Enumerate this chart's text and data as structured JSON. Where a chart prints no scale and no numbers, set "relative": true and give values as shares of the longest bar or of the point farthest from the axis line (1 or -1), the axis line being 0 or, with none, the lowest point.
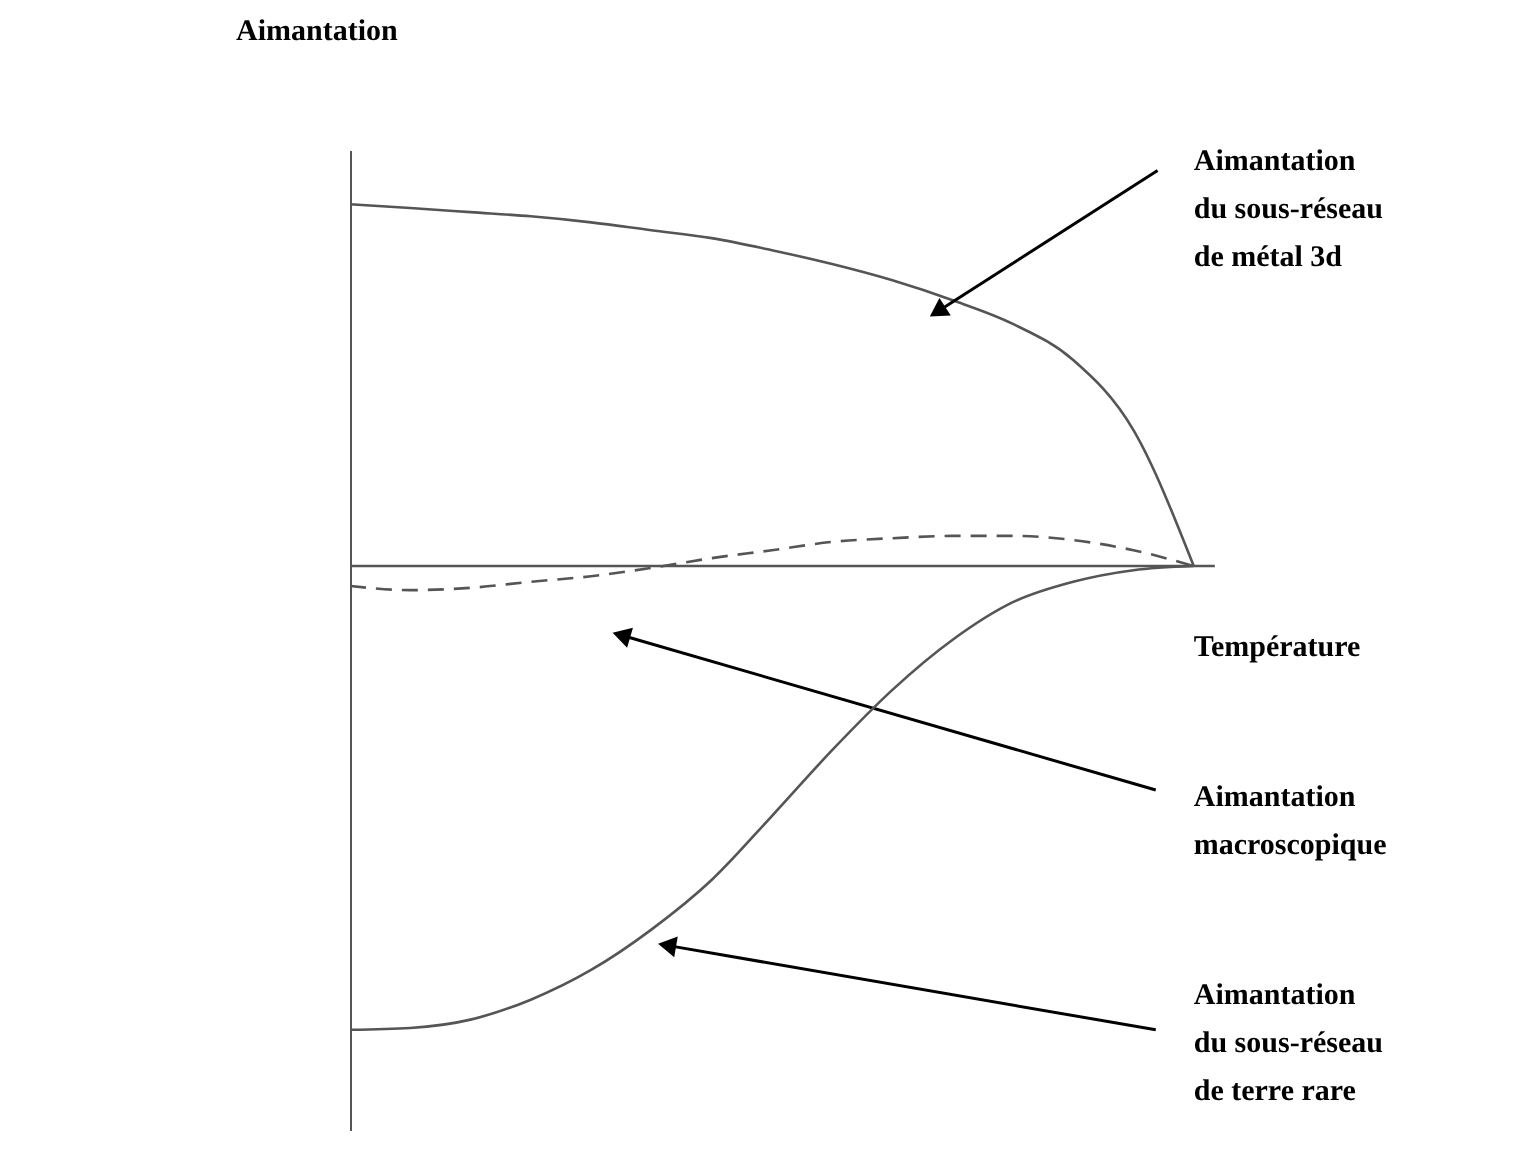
{
  "chart_data": {
    "type": "line",
    "relative": true,
    "xlabel": "Température",
    "annotations": [
      "Aimantation"
    ],
    "marker": "none",
    "categories": [
      null,
      null,
      null,
      null,
      null,
      null,
      null,
      null,
      null,
      null,
      null,
      null,
      null,
      null,
      null
    ],
    "series": [
      {
        "name": "Aimantation\ndu sous-réseau\nde métal 3d",
        "color": "#555555",
        "line_style": "solid",
        "values": [
          0.78,
          0.772,
          0.763,
          0.754,
          0.741,
          0.724,
          0.707,
          0.681,
          0.651,
          0.616,
          0.573,
          0.522,
          0.444,
          0.293,
          0
        ]
      },
      {
        "name": "Aimantation\nmacroscopique",
        "color": "#555555",
        "line_style": "dashed",
        "values": [
          -0.043,
          -0.052,
          -0.047,
          -0.034,
          -0.022,
          -0.004,
          0.017,
          0.034,
          0.052,
          0.06,
          0.065,
          0.065,
          0.056,
          0.034,
          0
        ]
      },
      {
        "name": "Aimantation\ndu sous-réseau\nde terre rare",
        "color": "#555555",
        "line_style": "solid",
        "values": [
          -1,
          -0.996,
          -0.978,
          -0.935,
          -0.871,
          -0.784,
          -0.677,
          -0.539,
          -0.397,
          -0.267,
          -0.159,
          -0.078,
          -0.034,
          -0.009,
          0
        ]
      }
    ]
  }
}
